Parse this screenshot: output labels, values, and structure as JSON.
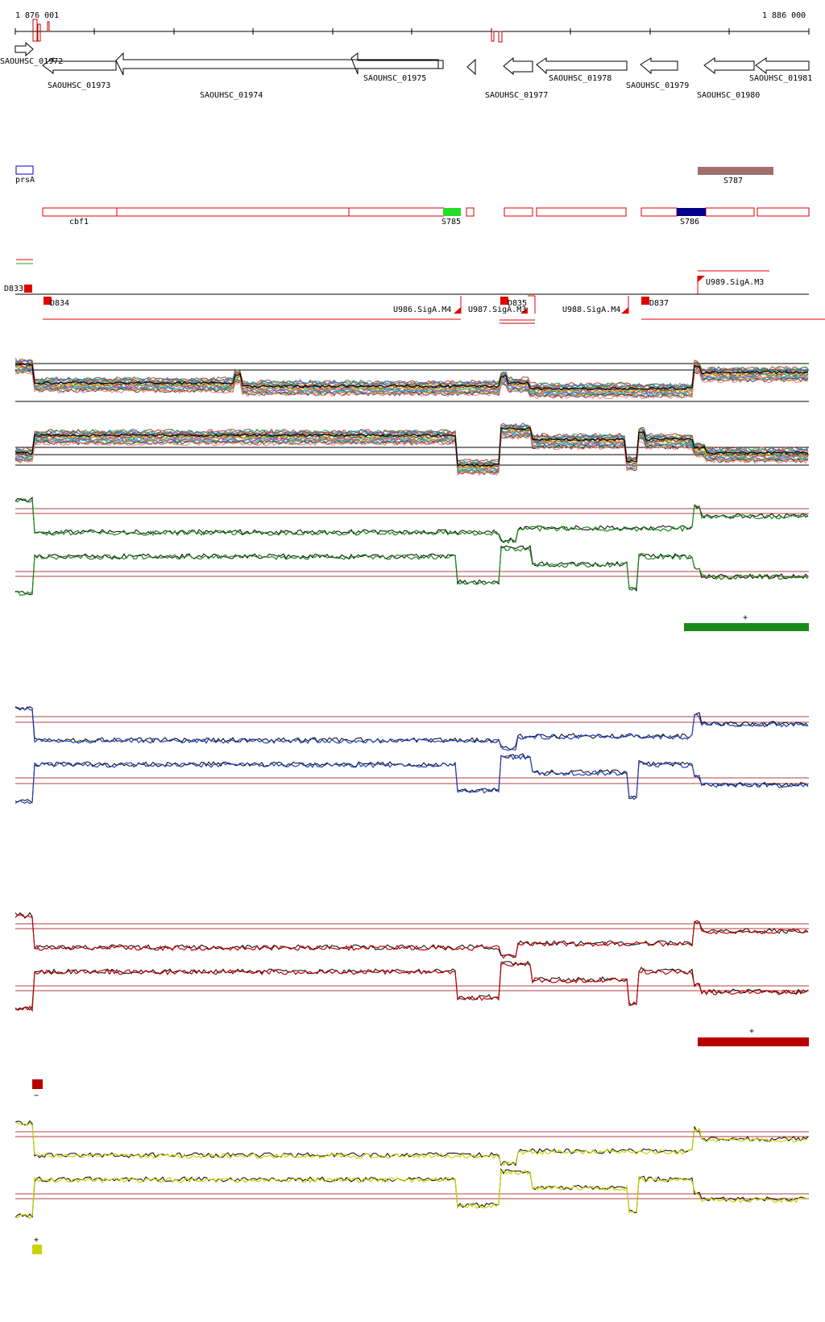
{
  "coords": {
    "start": "1 876 001",
    "end": "1 886 000"
  },
  "genes": [
    {
      "name": "SAOUHSC_01972"
    },
    {
      "name": "SAOUHSC_01973"
    },
    {
      "name": "SAOUHSC_01974"
    },
    {
      "name": "SAOUHSC_01975"
    },
    {
      "name": "SAOUHSC_01977"
    },
    {
      "name": "SAOUHSC_01978"
    },
    {
      "name": "SAOUHSC_01979"
    },
    {
      "name": "SAOUHSC_01980"
    },
    {
      "name": "SAOUHSC_01981"
    }
  ],
  "features": {
    "prsA": "prsA",
    "S787": "S787",
    "cbf1": "cbf1",
    "S785": "S785",
    "S786": "S786"
  },
  "regulatory": {
    "D833": "D833",
    "D834": "D834",
    "U986": "U986.SigA.M4",
    "U987": "U987.SigA.M3",
    "D835": "D835",
    "U988": "U988.SigA.M4",
    "D837": "D837",
    "U989": "U989.SigA.M3"
  },
  "legend": {
    "green_plus": "+",
    "red_plus": "+",
    "red_minus": "−",
    "yellow_plus": "+"
  },
  "colors": {
    "gene_outline": "#000000",
    "feature_red": "#e00000",
    "S785_fill": "#22dd22",
    "S786_fill": "#00008b",
    "S787_fill": "#a0706a",
    "prsA_outline": "#0000cc",
    "green_track": "#1a8a1a",
    "blue_track": "#1f3fbf",
    "red_track": "#c00000",
    "yellow_track": "#c8d400",
    "threshold_line": "#b04040"
  }
}
